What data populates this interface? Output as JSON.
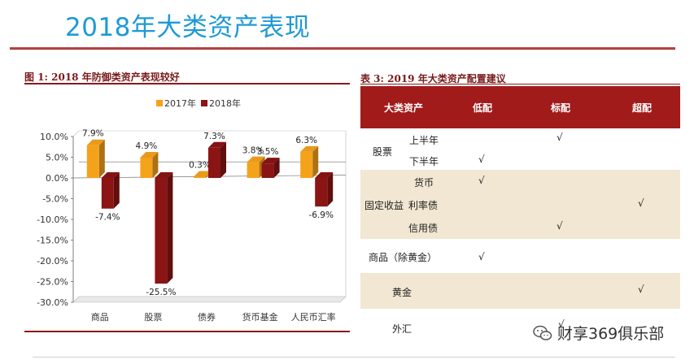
{
  "page": {
    "title": "2018年大类资产表现"
  },
  "figure": {
    "caption": "图 1:  2018 年防御类资产表现较好"
  },
  "chart_data": {
    "type": "bar",
    "categories": [
      "商品",
      "股票",
      "债券",
      "货币基金",
      "人民币汇率"
    ],
    "series": [
      {
        "name": "2017年",
        "values": [
          7.9,
          4.9,
          0.3,
          3.8,
          6.3
        ],
        "labels": [
          "7.9%",
          "4.9%",
          "0.3%",
          "3.8%",
          "6.3%"
        ],
        "color": "#f5a21b"
      },
      {
        "name": "2018年",
        "values": [
          -7.4,
          -25.5,
          7.3,
          3.5,
          -6.9
        ],
        "labels": [
          "-7.4%",
          "-25.5%",
          "7.3%",
          "3.5%",
          "-6.9%"
        ],
        "color": "#8b1414"
      }
    ],
    "ylim": [
      -30,
      10
    ],
    "yticks": [
      "10.0%",
      "5.0%",
      "0.0%",
      "-5.0%",
      "-10.0%",
      "-15.0%",
      "-20.0%",
      "-25.0%",
      "-30.0%"
    ],
    "ytick_values": [
      10,
      5,
      0,
      -5,
      -10,
      -15,
      -20,
      -25,
      -30
    ],
    "reference_line": 2.5,
    "legend_position": "top"
  },
  "table": {
    "caption": "表 3:  2019 年大类资产配置建议",
    "headers": [
      "大类资产",
      "低配",
      "标配",
      "超配"
    ],
    "rows": {
      "stock": "股票",
      "stock_h1": "上半年",
      "stock_h2": "下半年",
      "fixed": "固定收益",
      "fixed_money": "货币",
      "fixed_rate": "利率债",
      "fixed_credit": "信用债",
      "commodity": "商品（除黄金）",
      "gold": "黄金",
      "fx": "外汇"
    },
    "check_mark": "√",
    "band_color": "#f1e7d2"
  },
  "watermark": {
    "text": "财享369俱乐部"
  }
}
